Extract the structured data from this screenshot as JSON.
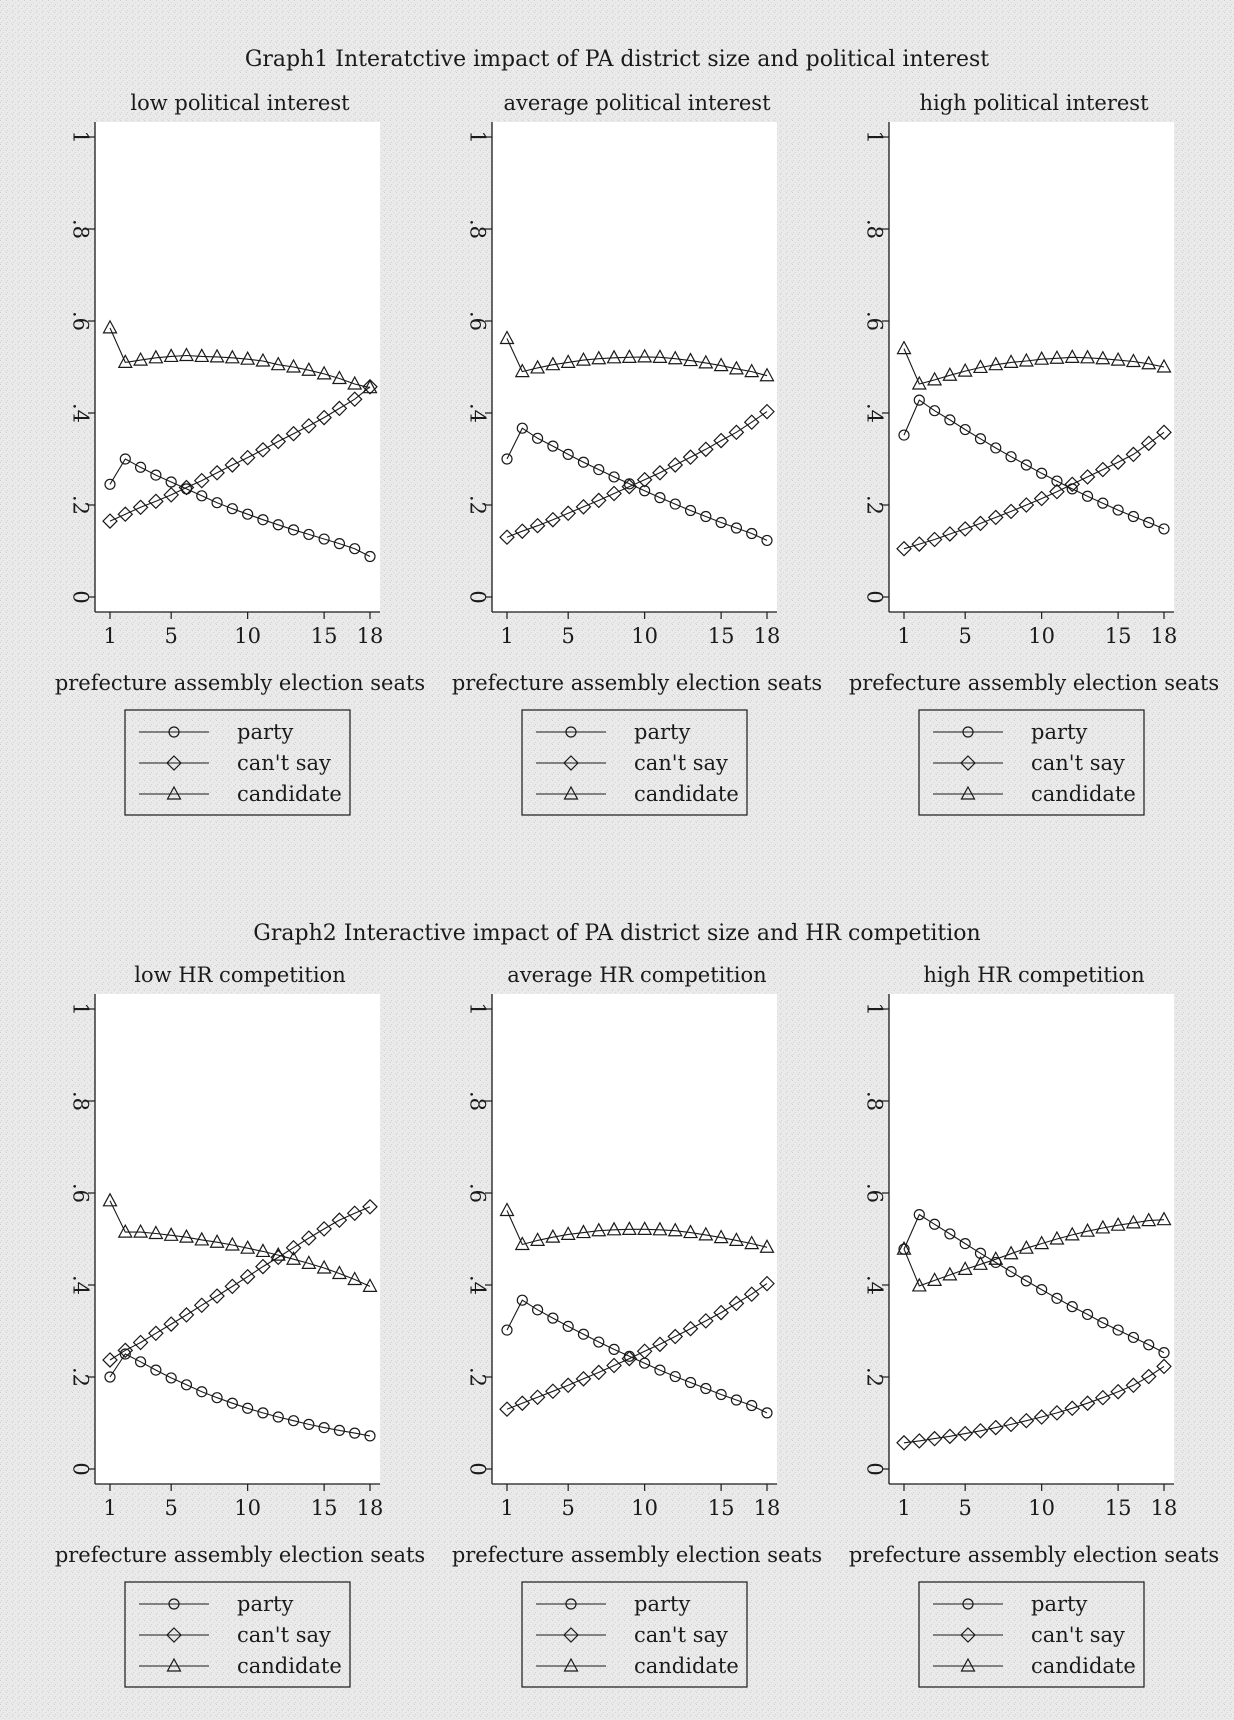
{
  "graphs": [
    {
      "title": "Graph1 Interatctive impact of PA district size and political interest",
      "panels": [
        {
          "subtitle": "low political interest",
          "xlabel": "prefecture assembly election seats",
          "ylim": [
            0,
            1
          ],
          "yticks": [
            "0",
            ".2",
            ".4",
            ".6",
            ".8",
            "1"
          ],
          "xticks": [
            "1",
            "5",
            "10",
            "15",
            "18"
          ],
          "legend": [
            "party",
            "can't say",
            "candidate"
          ],
          "chart_data": {
            "type": "line",
            "x": [
              1,
              2,
              3,
              4,
              5,
              6,
              7,
              8,
              9,
              10,
              11,
              12,
              13,
              14,
              15,
              16,
              17,
              18
            ],
            "series": [
              {
                "name": "party",
                "values": [
                  0.245,
                  0.3,
                  0.282,
                  0.265,
                  0.25,
                  0.235,
                  0.22,
                  0.205,
                  0.192,
                  0.18,
                  0.168,
                  0.157,
                  0.146,
                  0.136,
                  0.126,
                  0.116,
                  0.105,
                  0.088
                ]
              },
              {
                "name": "can't say",
                "values": [
                  0.165,
                  0.18,
                  0.195,
                  0.208,
                  0.222,
                  0.238,
                  0.253,
                  0.27,
                  0.287,
                  0.303,
                  0.32,
                  0.338,
                  0.355,
                  0.372,
                  0.39,
                  0.41,
                  0.43,
                  0.457
                ]
              },
              {
                "name": "candidate",
                "values": [
                  0.585,
                  0.51,
                  0.515,
                  0.52,
                  0.523,
                  0.525,
                  0.523,
                  0.522,
                  0.52,
                  0.517,
                  0.513,
                  0.505,
                  0.5,
                  0.493,
                  0.485,
                  0.475,
                  0.463,
                  0.455
                ]
              }
            ]
          }
        },
        {
          "subtitle": "average political interest",
          "xlabel": "prefecture assembly election seats",
          "ylim": [
            0,
            1
          ],
          "yticks": [
            "0",
            ".2",
            ".4",
            ".6",
            ".8",
            "1"
          ],
          "xticks": [
            "1",
            "5",
            "10",
            "15",
            "18"
          ],
          "legend": [
            "party",
            "can't say",
            "candidate"
          ],
          "chart_data": {
            "type": "line",
            "x": [
              1,
              2,
              3,
              4,
              5,
              6,
              7,
              8,
              9,
              10,
              11,
              12,
              13,
              14,
              15,
              16,
              17,
              18
            ],
            "series": [
              {
                "name": "party",
                "values": [
                  0.3,
                  0.367,
                  0.345,
                  0.328,
                  0.31,
                  0.293,
                  0.277,
                  0.261,
                  0.246,
                  0.231,
                  0.216,
                  0.202,
                  0.188,
                  0.175,
                  0.162,
                  0.15,
                  0.138,
                  0.123
                ]
              },
              {
                "name": "can't say",
                "values": [
                  0.13,
                  0.143,
                  0.155,
                  0.168,
                  0.182,
                  0.196,
                  0.21,
                  0.225,
                  0.24,
                  0.255,
                  0.27,
                  0.287,
                  0.304,
                  0.321,
                  0.34,
                  0.358,
                  0.38,
                  0.403
                ]
              },
              {
                "name": "candidate",
                "values": [
                  0.562,
                  0.49,
                  0.498,
                  0.505,
                  0.51,
                  0.515,
                  0.518,
                  0.52,
                  0.521,
                  0.522,
                  0.521,
                  0.518,
                  0.514,
                  0.509,
                  0.503,
                  0.496,
                  0.49,
                  0.481
                ]
              }
            ]
          }
        },
        {
          "subtitle": "high political interest",
          "xlabel": "prefecture assembly election seats",
          "ylim": [
            0,
            1
          ],
          "yticks": [
            "0",
            ".2",
            ".4",
            ".6",
            ".8",
            "1"
          ],
          "xticks": [
            "1",
            "5",
            "10",
            "15",
            "18"
          ],
          "legend": [
            "party",
            "can't say",
            "candidate"
          ],
          "chart_data": {
            "type": "line",
            "x": [
              1,
              2,
              3,
              4,
              5,
              6,
              7,
              8,
              9,
              10,
              11,
              12,
              13,
              14,
              15,
              16,
              17,
              18
            ],
            "series": [
              {
                "name": "party",
                "values": [
                  0.352,
                  0.428,
                  0.405,
                  0.385,
                  0.364,
                  0.344,
                  0.324,
                  0.305,
                  0.287,
                  0.269,
                  0.252,
                  0.235,
                  0.219,
                  0.204,
                  0.189,
                  0.175,
                  0.162,
                  0.148
                ]
              },
              {
                "name": "can't say",
                "values": [
                  0.105,
                  0.115,
                  0.125,
                  0.137,
                  0.148,
                  0.16,
                  0.173,
                  0.186,
                  0.2,
                  0.214,
                  0.229,
                  0.245,
                  0.261,
                  0.277,
                  0.293,
                  0.31,
                  0.334,
                  0.358
                ]
              },
              {
                "name": "candidate",
                "values": [
                  0.54,
                  0.463,
                  0.472,
                  0.482,
                  0.491,
                  0.499,
                  0.505,
                  0.51,
                  0.513,
                  0.517,
                  0.519,
                  0.521,
                  0.52,
                  0.518,
                  0.515,
                  0.512,
                  0.507,
                  0.5
                ]
              }
            ]
          }
        }
      ]
    },
    {
      "title": "Graph2 Interactive impact of PA district size and HR competition",
      "panels": [
        {
          "subtitle": "low HR competition",
          "xlabel": "prefecture assembly election seats",
          "ylim": [
            0,
            1
          ],
          "yticks": [
            "0",
            ".2",
            ".4",
            ".6",
            ".8",
            "1"
          ],
          "xticks": [
            "1",
            "5",
            "10",
            "15",
            "18"
          ],
          "legend": [
            "party",
            "can't say",
            "candidate"
          ],
          "chart_data": {
            "type": "line",
            "x": [
              1,
              2,
              3,
              4,
              5,
              6,
              7,
              8,
              9,
              10,
              11,
              12,
              13,
              14,
              15,
              16,
              17,
              18
            ],
            "series": [
              {
                "name": "party",
                "values": [
                  0.2,
                  0.25,
                  0.233,
                  0.215,
                  0.198,
                  0.183,
                  0.168,
                  0.155,
                  0.143,
                  0.132,
                  0.122,
                  0.113,
                  0.105,
                  0.097,
                  0.09,
                  0.084,
                  0.078,
                  0.072
                ]
              },
              {
                "name": "can't say",
                "values": [
                  0.237,
                  0.258,
                  0.275,
                  0.295,
                  0.315,
                  0.335,
                  0.356,
                  0.376,
                  0.397,
                  0.418,
                  0.44,
                  0.46,
                  0.481,
                  0.502,
                  0.522,
                  0.541,
                  0.556,
                  0.57
                ]
              },
              {
                "name": "candidate",
                "values": [
                  0.583,
                  0.515,
                  0.515,
                  0.512,
                  0.508,
                  0.504,
                  0.498,
                  0.493,
                  0.487,
                  0.48,
                  0.473,
                  0.465,
                  0.456,
                  0.447,
                  0.437,
                  0.425,
                  0.412,
                  0.397
                ]
              }
            ]
          }
        },
        {
          "subtitle": "average HR competition",
          "xlabel": "prefecture assembly election seats",
          "ylim": [
            0,
            1
          ],
          "yticks": [
            "0",
            ".2",
            ".4",
            ".6",
            ".8",
            "1"
          ],
          "xticks": [
            "1",
            "5",
            "10",
            "15",
            "18"
          ],
          "legend": [
            "party",
            "can't say",
            "candidate"
          ],
          "chart_data": {
            "type": "line",
            "x": [
              1,
              2,
              3,
              4,
              5,
              6,
              7,
              8,
              9,
              10,
              11,
              12,
              13,
              14,
              15,
              16,
              17,
              18
            ],
            "series": [
              {
                "name": "party",
                "values": [
                  0.302,
                  0.367,
                  0.346,
                  0.328,
                  0.31,
                  0.293,
                  0.276,
                  0.26,
                  0.245,
                  0.23,
                  0.215,
                  0.201,
                  0.188,
                  0.175,
                  0.162,
                  0.15,
                  0.138,
                  0.122
                ]
              },
              {
                "name": "can't say",
                "values": [
                  0.13,
                  0.143,
                  0.156,
                  0.169,
                  0.182,
                  0.196,
                  0.21,
                  0.225,
                  0.24,
                  0.256,
                  0.271,
                  0.288,
                  0.305,
                  0.322,
                  0.34,
                  0.36,
                  0.38,
                  0.403
                ]
              },
              {
                "name": "candidate",
                "values": [
                  0.562,
                  0.488,
                  0.497,
                  0.504,
                  0.51,
                  0.514,
                  0.518,
                  0.52,
                  0.521,
                  0.521,
                  0.52,
                  0.518,
                  0.514,
                  0.509,
                  0.503,
                  0.497,
                  0.49,
                  0.482
                ]
              }
            ]
          }
        },
        {
          "subtitle": "high HR competition",
          "xlabel": "prefecture assembly election seats",
          "ylim": [
            0,
            1
          ],
          "yticks": [
            "0",
            ".2",
            ".4",
            ".6",
            ".8",
            "1"
          ],
          "xticks": [
            "1",
            "5",
            "10",
            "15",
            "18"
          ],
          "legend": [
            "party",
            "can't say",
            "candidate"
          ],
          "chart_data": {
            "type": "line",
            "x": [
              1,
              2,
              3,
              4,
              5,
              6,
              7,
              8,
              9,
              10,
              11,
              12,
              13,
              14,
              15,
              16,
              17,
              18
            ],
            "series": [
              {
                "name": "party",
                "values": [
                  0.478,
                  0.553,
                  0.532,
                  0.511,
                  0.49,
                  0.469,
                  0.449,
                  0.429,
                  0.409,
                  0.39,
                  0.371,
                  0.353,
                  0.336,
                  0.318,
                  0.302,
                  0.286,
                  0.27,
                  0.253
                ]
              },
              {
                "name": "can't say",
                "values": [
                  0.057,
                  0.061,
                  0.066,
                  0.071,
                  0.077,
                  0.083,
                  0.09,
                  0.097,
                  0.105,
                  0.113,
                  0.122,
                  0.132,
                  0.143,
                  0.155,
                  0.168,
                  0.182,
                  0.201,
                  0.223
                ]
              },
              {
                "name": "candidate",
                "values": [
                  0.478,
                  0.398,
                  0.41,
                  0.422,
                  0.434,
                  0.445,
                  0.456,
                  0.468,
                  0.48,
                  0.49,
                  0.5,
                  0.509,
                  0.517,
                  0.524,
                  0.53,
                  0.535,
                  0.54,
                  0.542
                ]
              }
            ]
          }
        }
      ]
    }
  ]
}
